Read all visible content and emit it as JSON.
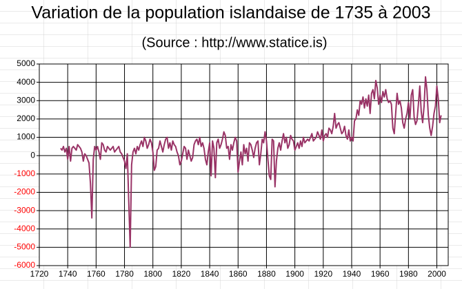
{
  "chart_data": {
    "type": "line",
    "title": "Variation de la population islandaise de 1735 à 2003",
    "subtitle": "(Source : http://www.statice.is)",
    "x": [
      1735,
      1736,
      1737,
      1738,
      1739,
      1740,
      1741,
      1742,
      1743,
      1744,
      1745,
      1746,
      1747,
      1748,
      1749,
      1750,
      1751,
      1752,
      1753,
      1754,
      1755,
      1756,
      1757,
      1758,
      1759,
      1760,
      1761,
      1762,
      1763,
      1764,
      1765,
      1766,
      1767,
      1768,
      1769,
      1770,
      1771,
      1772,
      1773,
      1774,
      1775,
      1776,
      1777,
      1778,
      1779,
      1780,
      1781,
      1782,
      1783,
      1784,
      1785,
      1786,
      1787,
      1788,
      1789,
      1790,
      1791,
      1792,
      1793,
      1794,
      1795,
      1796,
      1797,
      1798,
      1799,
      1800,
      1801,
      1802,
      1803,
      1804,
      1805,
      1806,
      1807,
      1808,
      1809,
      1810,
      1811,
      1812,
      1813,
      1814,
      1815,
      1816,
      1817,
      1818,
      1819,
      1820,
      1821,
      1822,
      1823,
      1824,
      1825,
      1826,
      1827,
      1828,
      1829,
      1830,
      1831,
      1832,
      1833,
      1834,
      1835,
      1836,
      1837,
      1838,
      1839,
      1840,
      1841,
      1842,
      1843,
      1844,
      1845,
      1846,
      1847,
      1848,
      1849,
      1850,
      1851,
      1852,
      1853,
      1854,
      1855,
      1856,
      1857,
      1858,
      1859,
      1860,
      1861,
      1862,
      1863,
      1864,
      1865,
      1866,
      1867,
      1868,
      1869,
      1870,
      1871,
      1872,
      1873,
      1874,
      1875,
      1876,
      1877,
      1878,
      1879,
      1880,
      1881,
      1882,
      1883,
      1884,
      1885,
      1886,
      1887,
      1888,
      1889,
      1890,
      1891,
      1892,
      1893,
      1894,
      1895,
      1896,
      1897,
      1898,
      1899,
      1900,
      1901,
      1902,
      1903,
      1904,
      1905,
      1906,
      1907,
      1908,
      1909,
      1910,
      1911,
      1912,
      1913,
      1914,
      1915,
      1916,
      1917,
      1918,
      1919,
      1920,
      1921,
      1922,
      1923,
      1924,
      1925,
      1926,
      1927,
      1928,
      1929,
      1930,
      1931,
      1932,
      1933,
      1934,
      1935,
      1936,
      1937,
      1938,
      1939,
      1940,
      1941,
      1942,
      1943,
      1944,
      1945,
      1946,
      1947,
      1948,
      1949,
      1950,
      1951,
      1952,
      1953,
      1954,
      1955,
      1956,
      1957,
      1958,
      1959,
      1960,
      1961,
      1962,
      1963,
      1964,
      1965,
      1966,
      1967,
      1968,
      1969,
      1970,
      1971,
      1972,
      1973,
      1974,
      1975,
      1976,
      1977,
      1978,
      1979,
      1980,
      1981,
      1982,
      1983,
      1984,
      1985,
      1986,
      1987,
      1988,
      1989,
      1990,
      1991,
      1992,
      1993,
      1994,
      1995,
      1996,
      1997,
      1998,
      1999,
      2000,
      2001,
      2002,
      2003
    ],
    "series": [
      {
        "color": "#993366",
        "values": [
          400,
          300,
          500,
          200,
          400,
          -200,
          500,
          -300,
          400,
          500,
          400,
          300,
          600,
          500,
          400,
          200,
          -300,
          100,
          0,
          -200,
          -400,
          -1500,
          -3400,
          -200,
          500,
          300,
          500,
          200,
          -200,
          700,
          600,
          300,
          200,
          500,
          400,
          300,
          400,
          500,
          200,
          300,
          400,
          500,
          200,
          100,
          -100,
          -300,
          -700,
          100,
          -2500,
          -5000,
          -500,
          200,
          400,
          100,
          500,
          300,
          600,
          800,
          500,
          1000,
          800,
          400,
          600,
          900,
          700,
          200,
          -800,
          -600,
          300,
          400,
          800,
          500,
          200,
          600,
          900,
          1000,
          400,
          700,
          300,
          800,
          600,
          500,
          200,
          0,
          -500,
          -300,
          100,
          500,
          400,
          -200,
          300,
          0,
          -300,
          -100,
          600,
          800,
          900,
          600,
          1000,
          500,
          700,
          400,
          -200,
          -500,
          200,
          700,
          -1100,
          800,
          400,
          -1200,
          700,
          900,
          400,
          600,
          900,
          1300,
          1100,
          400,
          500,
          -200,
          600,
          300,
          700,
          1000,
          800,
          -900,
          -300,
          200,
          -500,
          600,
          100,
          400,
          -300,
          700,
          600,
          300,
          -100,
          400,
          700,
          800,
          -500,
          100,
          900,
          700,
          1300,
          800,
          -200,
          -1100,
          -1300,
          900,
          800,
          -1700,
          -300,
          400,
          700,
          300,
          800,
          1200,
          700,
          1000,
          400,
          600,
          1100,
          900,
          800,
          300,
          500,
          700,
          400,
          800,
          500,
          1000,
          700,
          800,
          900,
          800,
          1000,
          1200,
          800,
          900,
          1000,
          1300,
          1100,
          900,
          1400,
          800,
          1100,
          1200,
          1000,
          1500,
          1400,
          1200,
          1600,
          2300,
          1500,
          1700,
          1800,
          1500,
          1200,
          1300,
          1600,
          1100,
          900,
          1400,
          800,
          1000,
          800,
          1900,
          2000,
          2500,
          2200,
          3000,
          2800,
          3200,
          2600,
          3100,
          2700,
          3300,
          2300,
          3400,
          3600,
          3100,
          4100,
          3700,
          2800,
          3300,
          2900,
          3500,
          3200,
          3600,
          3100,
          2900,
          3000,
          2800,
          1500,
          1200,
          2300,
          3400,
          2800,
          3000,
          2600,
          1800,
          1500,
          2000,
          2300,
          2900,
          2000,
          3300,
          3600,
          2100,
          1700,
          1900,
          2800,
          3800,
          2400,
          1800,
          2700,
          4300,
          3600,
          2200,
          1500,
          1100,
          1600,
          2300,
          2700,
          3800,
          3100,
          1800,
          2200
        ]
      }
    ],
    "xlim": [
      1720,
      2008
    ],
    "xticks": [
      1720,
      1740,
      1760,
      1780,
      1800,
      1820,
      1840,
      1860,
      1880,
      1900,
      1920,
      1940,
      1960,
      1980,
      2000
    ],
    "ylim": [
      -6000,
      5000
    ],
    "yticks": [
      -6000,
      -5000,
      -4000,
      -3000,
      -2000,
      -1000,
      0,
      1000,
      2000,
      3000,
      4000,
      5000
    ],
    "negative_tick_color": "#ff0000",
    "grid": true
  }
}
